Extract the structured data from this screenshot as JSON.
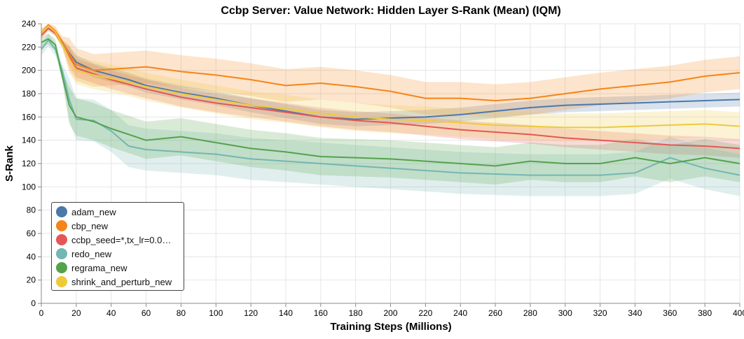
{
  "chart_data": {
    "type": "line",
    "title": "Ccbp Server: Value Network: Hidden Layer S-Rank (Mean) (IQM)",
    "xlabel": "Training Steps (Millions)",
    "ylabel": "S-Rank",
    "xlim": [
      0,
      400
    ],
    "ylim": [
      0,
      240
    ],
    "x_ticks": [
      0,
      20,
      40,
      60,
      80,
      100,
      120,
      140,
      160,
      180,
      200,
      220,
      240,
      260,
      280,
      300,
      320,
      340,
      360,
      380,
      400
    ],
    "y_ticks": [
      0,
      20,
      40,
      60,
      80,
      100,
      120,
      140,
      160,
      180,
      200,
      220,
      240
    ],
    "grid": true,
    "legend_position": "bottom-left",
    "x": [
      0,
      4,
      8,
      12,
      16,
      20,
      30,
      40,
      50,
      60,
      80,
      100,
      120,
      140,
      160,
      180,
      200,
      220,
      240,
      260,
      280,
      300,
      320,
      340,
      360,
      380,
      400
    ],
    "series": [
      {
        "name": "adam_new",
        "color": "#4c78a8",
        "values": [
          232,
          238,
          233,
          224,
          215,
          207,
          200,
          196,
          192,
          187,
          181,
          176,
          170,
          165,
          160,
          158,
          159,
          160,
          162,
          165,
          168,
          170,
          171,
          172,
          173,
          174,
          175
        ],
        "band": 6
      },
      {
        "name": "cbp_new",
        "color": "#f58518",
        "values": [
          232,
          239,
          234,
          225,
          214,
          205,
          200,
          201,
          202,
          203,
          199,
          196,
          192,
          187,
          189,
          186,
          182,
          176,
          176,
          174,
          176,
          180,
          184,
          187,
          190,
          195,
          198
        ],
        "band": 14
      },
      {
        "name": "ccbp_seed=*,tx_lr=0.0…",
        "color": "#e45756",
        "values": [
          230,
          236,
          232,
          222,
          212,
          202,
          197,
          192,
          188,
          184,
          177,
          172,
          168,
          164,
          160,
          157,
          155,
          152,
          149,
          147,
          145,
          142,
          140,
          138,
          136,
          135,
          133
        ],
        "band": 8
      },
      {
        "name": "redo_new",
        "color": "#72b7b2",
        "values": [
          218,
          226,
          218,
          200,
          175,
          158,
          157,
          148,
          135,
          132,
          130,
          128,
          124,
          122,
          120,
          118,
          116,
          114,
          112,
          111,
          110,
          110,
          110,
          112,
          125,
          116,
          110
        ],
        "band": 18
      },
      {
        "name": "regrama_new",
        "color": "#54a24b",
        "values": [
          224,
          227,
          222,
          195,
          170,
          160,
          156,
          150,
          145,
          140,
          143,
          138,
          133,
          130,
          126,
          125,
          124,
          122,
          120,
          118,
          122,
          120,
          120,
          125,
          120,
          125,
          120
        ],
        "band": 16
      },
      {
        "name": "shrink_and_perturb_new",
        "color": "#eeca3b",
        "values": [
          232,
          238,
          233,
          222,
          210,
          200,
          196,
          193,
          190,
          186,
          180,
          175,
          170,
          167,
          163,
          160,
          158,
          157,
          155,
          153,
          152,
          151,
          151,
          152,
          153,
          154,
          152
        ],
        "band": 12
      }
    ]
  }
}
